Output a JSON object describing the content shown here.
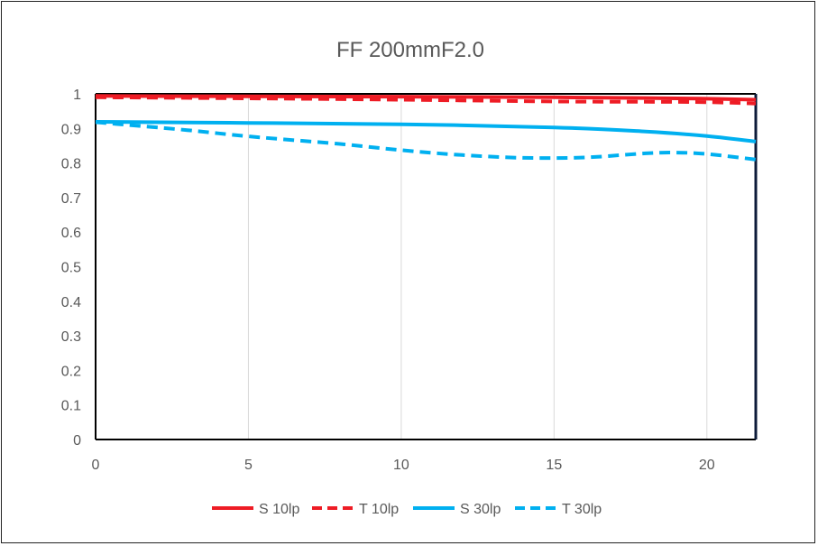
{
  "chart_data": {
    "type": "line",
    "title": "FF  200mmF2.0",
    "xlabel": "",
    "ylabel": "",
    "xlim": [
      0,
      21.6
    ],
    "ylim": [
      0,
      1
    ],
    "x_ticks": [
      "0",
      "5",
      "10",
      "15",
      "20"
    ],
    "x_tick_values": [
      0,
      5,
      10,
      15,
      20
    ],
    "y_ticks": [
      "0",
      "0.1",
      "0.2",
      "0.3",
      "0.4",
      "0.5",
      "0.6",
      "0.7",
      "0.8",
      "0.9",
      "1"
    ],
    "y_tick_values": [
      0,
      0.1,
      0.2,
      0.3,
      0.4,
      0.5,
      0.6,
      0.7,
      0.8,
      0.9,
      1.0
    ],
    "grid": "vertical",
    "legend_position": "bottom",
    "series": [
      {
        "name": "S 10lp",
        "color": "#ee1c25",
        "dash": "solid",
        "x": [
          0,
          5,
          10,
          15,
          18,
          20,
          21.6
        ],
        "y": [
          0.994,
          0.993,
          0.992,
          0.99,
          0.988,
          0.986,
          0.983
        ]
      },
      {
        "name": "T 10lp",
        "color": "#ee1c25",
        "dash": "dashed",
        "x": [
          0,
          5,
          10,
          15,
          18,
          20,
          21.6
        ],
        "y": [
          0.99,
          0.987,
          0.983,
          0.978,
          0.977,
          0.976,
          0.972
        ]
      },
      {
        "name": "S 30lp",
        "color": "#00b0f0",
        "dash": "solid",
        "x": [
          0,
          5,
          10,
          15,
          18,
          20,
          21.6
        ],
        "y": [
          0.919,
          0.916,
          0.912,
          0.903,
          0.891,
          0.878,
          0.862
        ]
      },
      {
        "name": "T 30lp",
        "color": "#00b0f0",
        "dash": "dashed",
        "x": [
          0,
          3,
          5,
          8,
          10,
          12,
          14,
          16,
          18,
          19,
          20,
          21.6
        ],
        "y": [
          0.918,
          0.895,
          0.877,
          0.855,
          0.837,
          0.823,
          0.815,
          0.816,
          0.828,
          0.83,
          0.826,
          0.81
        ]
      }
    ]
  }
}
